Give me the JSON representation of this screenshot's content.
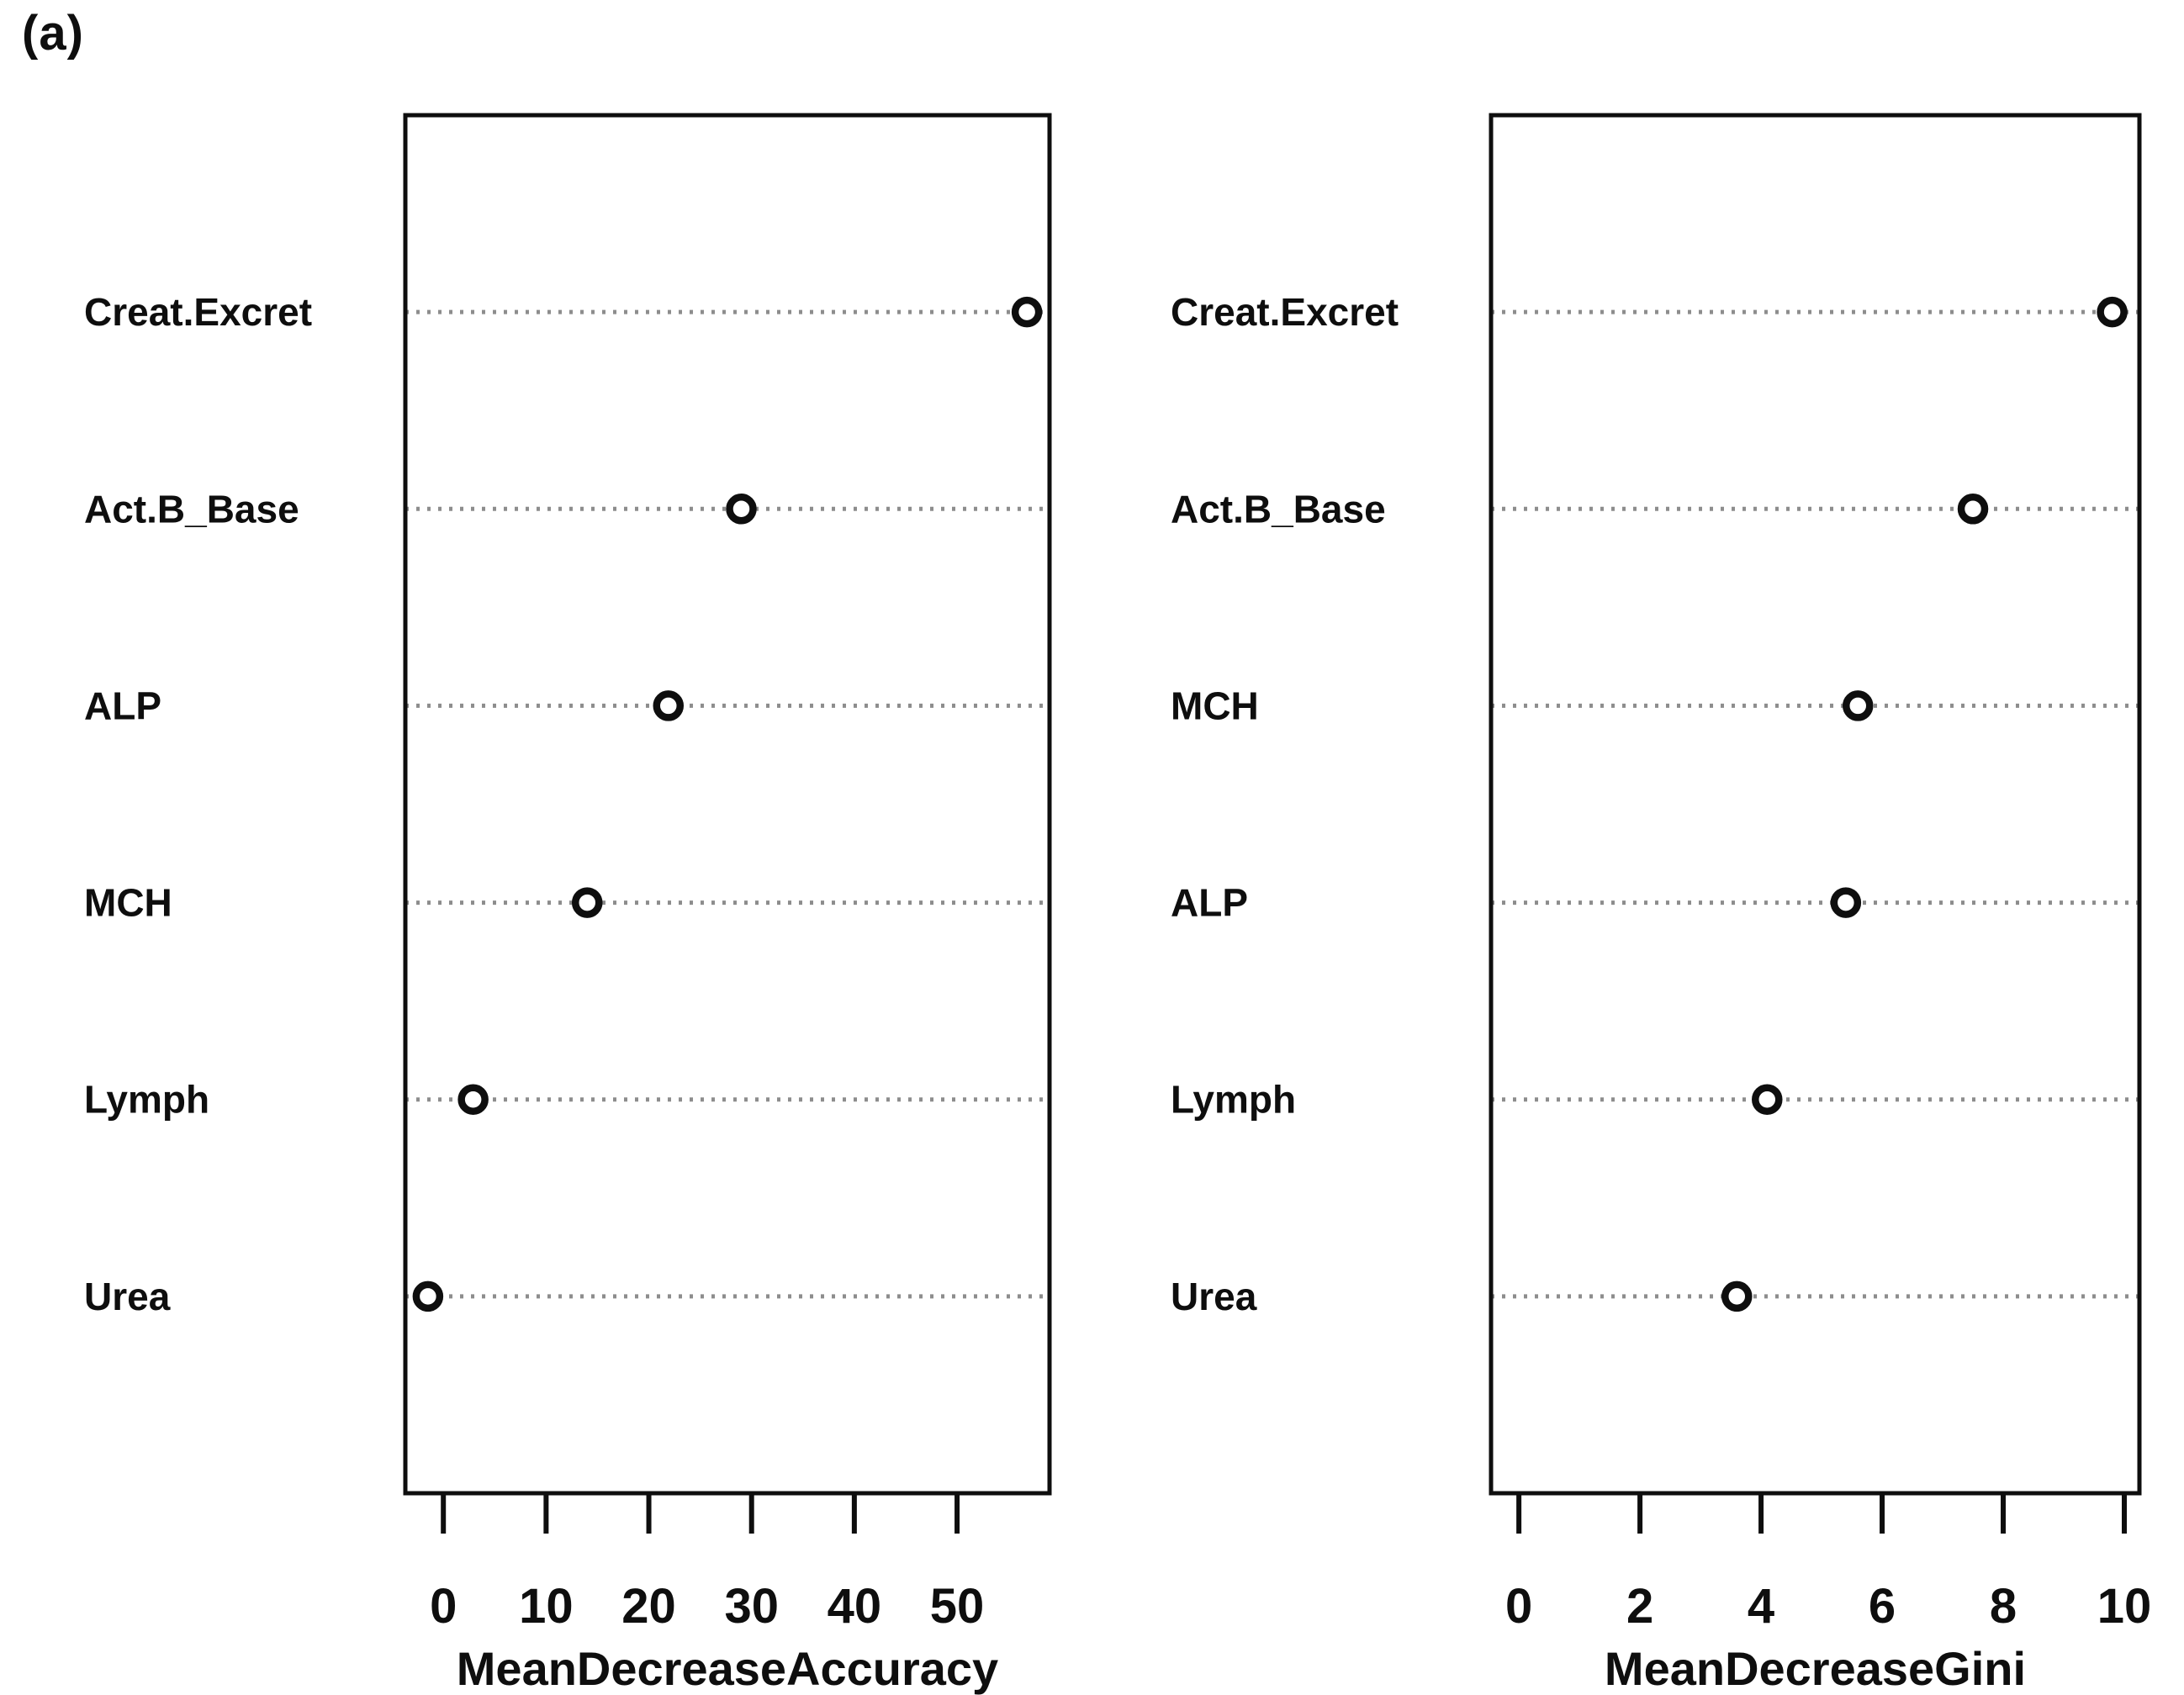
{
  "figure_label": "(a)",
  "colors": {
    "ink": "#0e0e0e",
    "grid_dots": "#8d8d8d",
    "marker_fill": "#ffffff",
    "background": "#ffffff"
  },
  "chart_data": [
    {
      "type": "scatter",
      "title": "",
      "xlabel": "MeanDecreaseAccuracy",
      "ylabel": "",
      "categories": [
        "Creat.Excret",
        "Act.B_Base",
        "ALP",
        "MCH",
        "Lymph",
        "Urea"
      ],
      "values": [
        56.8,
        29.0,
        21.9,
        14.0,
        2.9,
        -1.5
      ],
      "xlim": [
        -3.7,
        59.0
      ],
      "xticks": [
        0,
        10,
        20,
        30,
        40,
        50
      ],
      "grid": "dotted horizontal row lines",
      "legend": "none",
      "marker": "open-circle"
    },
    {
      "type": "scatter",
      "title": "",
      "xlabel": "MeanDecreaseGini",
      "ylabel": "",
      "categories": [
        "Creat.Excret",
        "Act.B_Base",
        "MCH",
        "ALP",
        "Lymph",
        "Urea"
      ],
      "values": [
        9.8,
        7.5,
        5.6,
        5.4,
        4.1,
        3.6
      ],
      "xlim": [
        -0.46,
        10.25
      ],
      "xticks": [
        0,
        2,
        4,
        6,
        8,
        10
      ],
      "grid": "dotted horizontal row lines",
      "legend": "none",
      "marker": "open-circle"
    }
  ]
}
